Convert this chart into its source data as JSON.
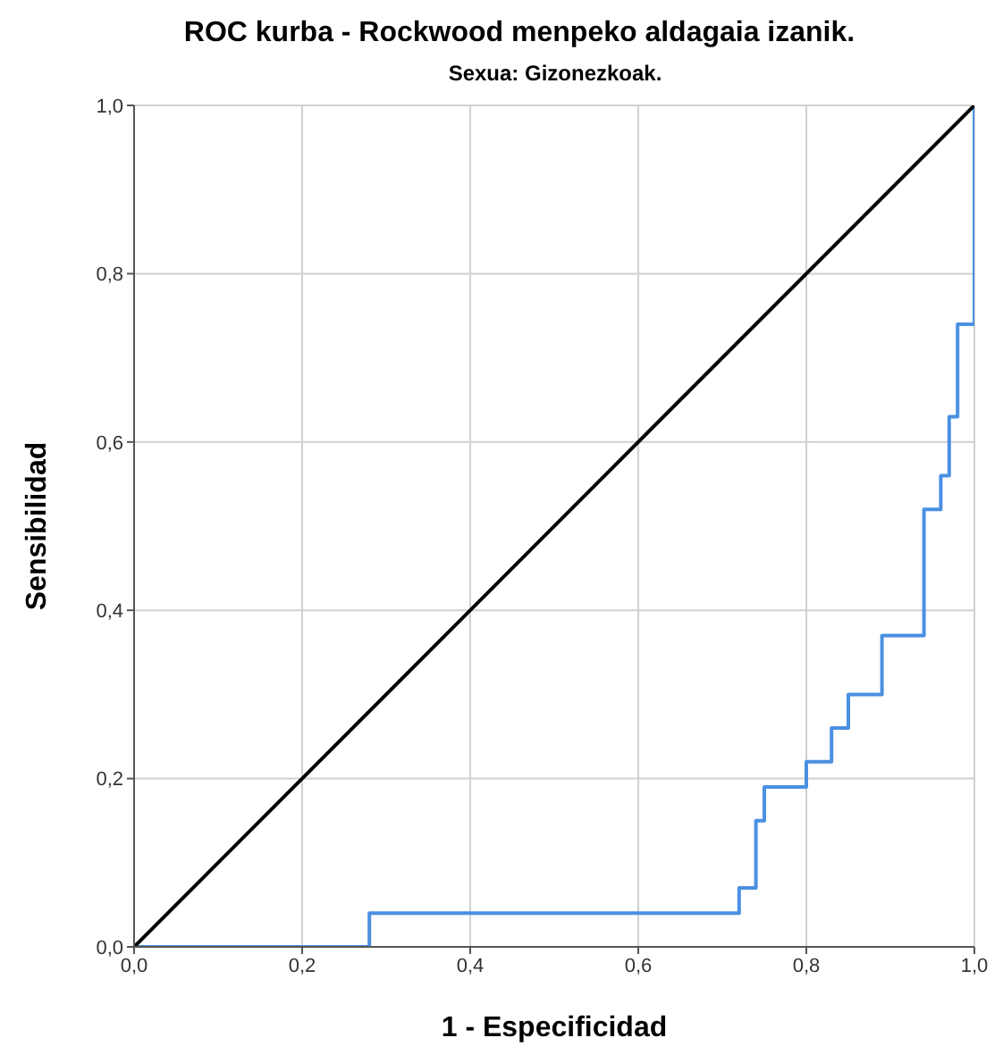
{
  "chart_data": {
    "type": "step",
    "title": "ROC kurba - Rockwood menpeko aldagaia izanik.",
    "subtitle": "Sexua: Gizonezkoak.",
    "xlabel": "1 - Especificidad",
    "ylabel": "Sensibilidad",
    "series": [
      {
        "color": "#4a90e2",
        "x": [
          0,
          0.28,
          0.72,
          0.74,
          0.75,
          0.8,
          0.83,
          0.85,
          0.89,
          0.94,
          0.96,
          0.97,
          0.98,
          1
        ],
        "values": [
          0,
          0.04,
          0.07,
          0.15,
          0.19,
          0.22,
          0.26,
          0.3,
          0.37,
          0.52,
          0.56,
          0.63,
          0.74,
          1
        ]
      },
      {
        "type": "line",
        "color": "#000000",
        "x": [
          0,
          1
        ],
        "values": [
          0,
          1
        ]
      }
    ],
    "xlim": [
      0,
      1
    ],
    "ylim": [
      0,
      1
    ],
    "xticks": [
      {
        "value": 0,
        "label": "0,0"
      },
      {
        "value": 0.2,
        "label": "0,2"
      },
      {
        "value": 0.4,
        "label": "0,4"
      },
      {
        "value": 0.6,
        "label": "0,6"
      },
      {
        "value": 0.8,
        "label": "0,8"
      },
      {
        "value": 1,
        "label": "1,0"
      }
    ],
    "yticks": [
      {
        "value": 0,
        "label": "0,0"
      },
      {
        "value": 0.2,
        "label": "0,2"
      },
      {
        "value": 0.4,
        "label": "0,4"
      },
      {
        "value": 0.6,
        "label": "0,6"
      },
      {
        "value": 0.8,
        "label": "0,8"
      },
      {
        "value": 1,
        "label": "1,0"
      }
    ],
    "grid": true,
    "marker": "none"
  }
}
